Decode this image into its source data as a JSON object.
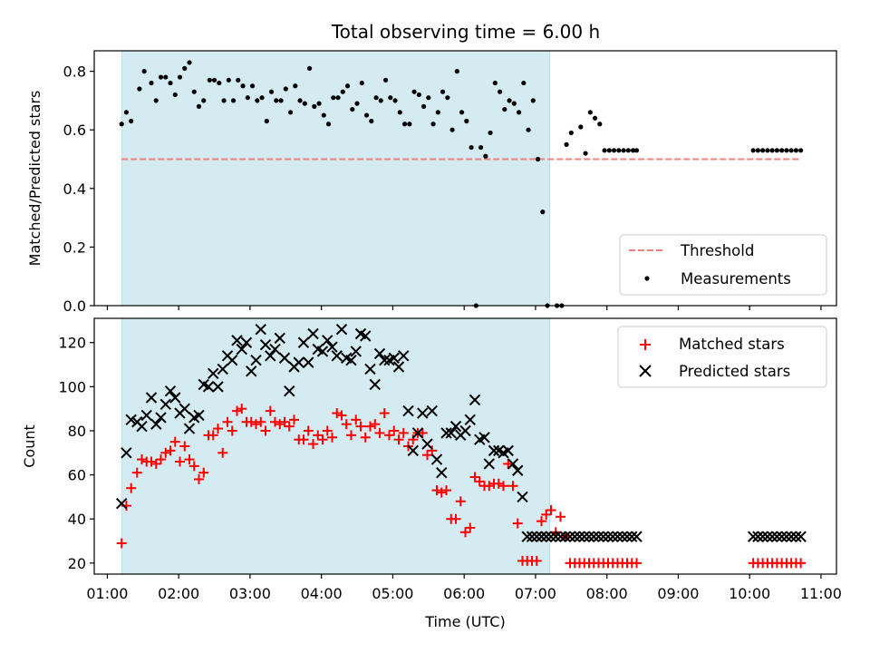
{
  "chart_data": [
    {
      "type": "scatter",
      "title": "Total observing time = 6.00 h",
      "xlabel": "",
      "ylabel": "Matched/Predicted stars",
      "ylim": [
        0,
        0.87
      ],
      "yticks": [
        0.0,
        0.2,
        0.4,
        0.6,
        0.8
      ],
      "ytick_labels": [
        "0.0",
        "0.2",
        "0.4",
        "0.6",
        "0.8"
      ],
      "xlim": [
        "00:49",
        "11:13"
      ],
      "shaded_span": [
        "01:12",
        "07:12"
      ],
      "shade_color": "#d4ebf1",
      "grid": false,
      "legend_position": "lower-right",
      "threshold": {
        "name": "Threshold",
        "y": 0.5,
        "x_range": [
          "01:12",
          "10:43"
        ],
        "color": "#f08080"
      },
      "series": [
        {
          "name": "Measurements",
          "color": "#000000",
          "marker": "dot",
          "x": [
            "01:12",
            "01:16",
            "01:20",
            "01:27",
            "01:31",
            "01:37",
            "01:41",
            "01:45",
            "01:49",
            "01:53",
            "01:57",
            "02:01",
            "02:05",
            "02:09",
            "02:13",
            "02:17",
            "02:21",
            "02:26",
            "02:30",
            "02:34",
            "02:38",
            "02:42",
            "02:46",
            "02:50",
            "02:54",
            "02:58",
            "03:02",
            "03:06",
            "03:10",
            "03:14",
            "03:18",
            "03:22",
            "03:26",
            "03:30",
            "03:34",
            "03:38",
            "03:42",
            "03:46",
            "03:50",
            "03:54",
            "03:58",
            "04:02",
            "04:06",
            "04:10",
            "04:14",
            "04:18",
            "04:22",
            "04:26",
            "04:30",
            "04:34",
            "04:38",
            "04:42",
            "04:46",
            "04:50",
            "04:54",
            "04:58",
            "05:02",
            "05:06",
            "05:10",
            "05:14",
            "05:18",
            "05:22",
            "05:26",
            "05:30",
            "05:34",
            "05:38",
            "05:42",
            "05:46",
            "05:50",
            "05:54",
            "05:58",
            "06:02",
            "06:06",
            "06:10",
            "06:14",
            "06:18",
            "06:22",
            "06:26",
            "06:30",
            "06:34",
            "06:38",
            "06:42",
            "06:46",
            "06:50",
            "06:54",
            "06:58",
            "07:02",
            "07:06",
            "07:10",
            "07:18",
            "07:22",
            "07:26",
            "07:30",
            "07:38",
            "07:42",
            "07:46",
            "07:50",
            "07:54",
            "07:58",
            "08:02",
            "08:06",
            "08:10",
            "08:14",
            "08:18",
            "08:22",
            "08:25",
            "10:03",
            "10:07",
            "10:11",
            "10:15",
            "10:19",
            "10:23",
            "10:27",
            "10:31",
            "10:35",
            "10:39",
            "10:43"
          ],
          "values": [
            0.62,
            0.66,
            0.63,
            0.74,
            0.8,
            0.76,
            0.7,
            0.78,
            0.78,
            0.76,
            0.72,
            0.78,
            0.81,
            0.83,
            0.73,
            0.68,
            0.7,
            0.77,
            0.77,
            0.76,
            0.7,
            0.77,
            0.7,
            0.77,
            0.75,
            0.71,
            0.75,
            0.7,
            0.71,
            0.63,
            0.73,
            0.7,
            0.7,
            0.74,
            0.66,
            0.75,
            0.7,
            0.69,
            0.81,
            0.68,
            0.69,
            0.65,
            0.62,
            0.71,
            0.71,
            0.73,
            0.75,
            0.67,
            0.69,
            0.76,
            0.65,
            0.63,
            0.71,
            0.7,
            0.77,
            0.71,
            0.7,
            0.66,
            0.62,
            0.62,
            0.73,
            0.72,
            0.68,
            0.71,
            0.62,
            0.66,
            0.73,
            0.71,
            0.6,
            0.8,
            0.66,
            0.63,
            0.54,
            0.0,
            0.54,
            0.51,
            0.59,
            0.76,
            0.73,
            0.67,
            0.7,
            0.69,
            0.66,
            0.76,
            0.6,
            0.7,
            0.5,
            0.32,
            0.0,
            0.0,
            0.0,
            0.55,
            0.59,
            0.61,
            0.52,
            0.66,
            0.64,
            0.62,
            0.53,
            0.53,
            0.53,
            0.53,
            0.53,
            0.53,
            0.53,
            0.53,
            0.53,
            0.53,
            0.53,
            0.53,
            0.53,
            0.53,
            0.53,
            0.53,
            0.53,
            0.53,
            0.53
          ]
        }
      ]
    },
    {
      "type": "scatter",
      "title": "",
      "xlabel": "Time (UTC)",
      "ylabel": "Count",
      "ylim": [
        15,
        131
      ],
      "yticks": [
        20,
        40,
        60,
        80,
        100,
        120
      ],
      "ytick_labels": [
        "20",
        "40",
        "60",
        "80",
        "100",
        "120"
      ],
      "xlim": [
        "00:49",
        "11:13"
      ],
      "xticks": [
        "01:00",
        "02:00",
        "03:00",
        "04:00",
        "05:00",
        "06:00",
        "07:00",
        "08:00",
        "09:00",
        "10:00",
        "11:00"
      ],
      "shaded_span": [
        "01:12",
        "07:12"
      ],
      "shade_color": "#d4ebf1",
      "grid": false,
      "legend_position": "top-right",
      "series": [
        {
          "name": "Matched stars",
          "color": "#ff0000",
          "marker": "plus",
          "x": [
            "01:12",
            "01:16",
            "01:20",
            "01:25",
            "01:29",
            "01:33",
            "01:37",
            "01:41",
            "01:45",
            "01:49",
            "01:53",
            "01:57",
            "02:01",
            "02:05",
            "02:09",
            "02:13",
            "02:17",
            "02:21",
            "02:25",
            "02:29",
            "02:33",
            "02:37",
            "02:41",
            "02:45",
            "02:49",
            "02:53",
            "02:57",
            "03:01",
            "03:05",
            "03:09",
            "03:13",
            "03:17",
            "03:21",
            "03:25",
            "03:29",
            "03:33",
            "03:37",
            "03:41",
            "03:45",
            "03:49",
            "03:53",
            "03:57",
            "04:01",
            "04:05",
            "04:09",
            "04:13",
            "04:17",
            "04:21",
            "04:25",
            "04:29",
            "04:33",
            "04:37",
            "04:41",
            "04:45",
            "04:49",
            "04:53",
            "04:57",
            "05:01",
            "05:05",
            "05:09",
            "05:13",
            "05:17",
            "05:21",
            "05:25",
            "05:29",
            "05:33",
            "05:37",
            "05:41",
            "05:45",
            "05:49",
            "05:53",
            "05:57",
            "06:01",
            "06:05",
            "06:09",
            "06:13",
            "06:17",
            "06:21",
            "06:25",
            "06:29",
            "06:33",
            "06:37",
            "06:41",
            "06:45",
            "06:49",
            "06:53",
            "06:57",
            "07:01",
            "07:05",
            "07:09",
            "07:13",
            "07:17",
            "07:21",
            "07:25",
            "07:29",
            "07:33",
            "07:37",
            "07:41",
            "07:45",
            "07:49",
            "07:53",
            "07:57",
            "08:01",
            "08:05",
            "08:09",
            "08:13",
            "08:17",
            "08:21",
            "08:25",
            "10:03",
            "10:07",
            "10:11",
            "10:15",
            "10:19",
            "10:23",
            "10:27",
            "10:31",
            "10:35",
            "10:39",
            "10:43"
          ],
          "values": [
            29,
            46,
            54,
            61,
            67,
            66,
            66,
            65,
            67,
            70,
            71,
            75,
            66,
            73,
            67,
            64,
            58,
            61,
            78,
            78,
            81,
            70,
            84,
            80,
            89,
            90,
            84,
            84,
            83,
            84,
            80,
            89,
            84,
            83,
            84,
            82,
            85,
            76,
            76,
            80,
            74,
            78,
            76,
            80,
            77,
            88,
            87,
            83,
            78,
            85,
            82,
            77,
            82,
            83,
            79,
            88,
            78,
            80,
            76,
            79,
            73,
            76,
            79,
            79,
            69,
            71,
            53,
            52,
            53,
            40,
            40,
            48,
            34,
            36,
            59,
            57,
            55,
            55,
            56,
            56,
            55,
            65,
            55,
            38,
            21,
            21,
            21,
            21,
            39,
            42,
            44,
            34,
            41,
            32,
            20,
            20,
            20,
            20,
            20,
            20,
            20,
            20,
            20,
            20,
            20,
            20,
            20,
            20,
            20,
            20,
            20,
            20,
            20,
            20,
            20,
            20,
            20,
            20,
            20,
            20
          ]
        },
        {
          "name": "Predicted stars",
          "color": "#000000",
          "marker": "x",
          "x": [
            "01:12",
            "01:16",
            "01:20",
            "01:25",
            "01:29",
            "01:33",
            "01:37",
            "01:41",
            "01:45",
            "01:49",
            "01:53",
            "01:57",
            "02:01",
            "02:05",
            "02:09",
            "02:13",
            "02:17",
            "02:21",
            "02:25",
            "02:29",
            "02:33",
            "02:37",
            "02:41",
            "02:45",
            "02:49",
            "02:53",
            "02:57",
            "03:01",
            "03:05",
            "03:09",
            "03:13",
            "03:17",
            "03:21",
            "03:25",
            "03:29",
            "03:33",
            "03:37",
            "03:41",
            "03:45",
            "03:49",
            "03:53",
            "03:57",
            "04:01",
            "04:05",
            "04:09",
            "04:13",
            "04:17",
            "04:21",
            "04:25",
            "04:29",
            "04:33",
            "04:37",
            "04:41",
            "04:45",
            "04:49",
            "04:53",
            "04:57",
            "05:01",
            "05:05",
            "05:09",
            "05:13",
            "05:17",
            "05:21",
            "05:25",
            "05:29",
            "05:33",
            "05:37",
            "05:41",
            "05:45",
            "05:49",
            "05:53",
            "05:57",
            "06:01",
            "06:05",
            "06:09",
            "06:13",
            "06:17",
            "06:21",
            "06:25",
            "06:29",
            "06:33",
            "06:37",
            "06:41",
            "06:45",
            "06:49",
            "06:53",
            "06:57",
            "07:01",
            "07:05",
            "07:09",
            "07:13",
            "07:17",
            "07:21",
            "07:25",
            "07:29",
            "07:33",
            "07:37",
            "07:41",
            "07:45",
            "07:49",
            "07:53",
            "07:57",
            "08:01",
            "08:05",
            "08:09",
            "08:13",
            "08:17",
            "08:21",
            "08:25",
            "10:03",
            "10:07",
            "10:11",
            "10:15",
            "10:19",
            "10:23",
            "10:27",
            "10:31",
            "10:35",
            "10:39",
            "10:43"
          ],
          "values": [
            47,
            70,
            85,
            84,
            82,
            87,
            95,
            83,
            86,
            92,
            98,
            95,
            88,
            90,
            81,
            86,
            87,
            101,
            100,
            106,
            100,
            108,
            114,
            112,
            121,
            117,
            120,
            107,
            112,
            126,
            119,
            114,
            117,
            122,
            113,
            98,
            109,
            111,
            120,
            111,
            124,
            117,
            116,
            121,
            118,
            114,
            126,
            113,
            112,
            116,
            124,
            123,
            108,
            101,
            115,
            112,
            112,
            113,
            109,
            114,
            89,
            71,
            79,
            88,
            74,
            89,
            67,
            61,
            79,
            79,
            82,
            78,
            80,
            85,
            94,
            76,
            77,
            65,
            71,
            71,
            70,
            71,
            65,
            62,
            50,
            32,
            32,
            32,
            32,
            32,
            32,
            32,
            32,
            32,
            32,
            32,
            32,
            32,
            32,
            32,
            32,
            32,
            32,
            32,
            32,
            32,
            32,
            32,
            32,
            32,
            32,
            32,
            32,
            32,
            32,
            32,
            32,
            32,
            32,
            32
          ]
        }
      ]
    }
  ]
}
